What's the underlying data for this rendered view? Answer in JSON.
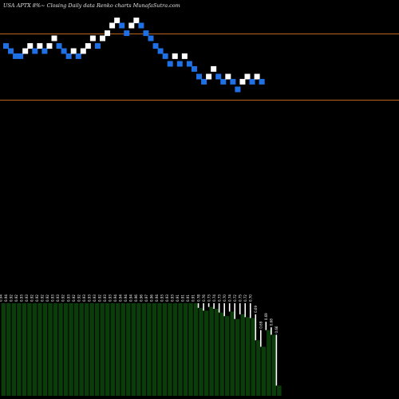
{
  "title": "USA APTX  8%~  Closing Daily data  Renko  charts MunafaSutra.com",
  "chart_data": {
    "type": "renko",
    "ylim": [
      0,
      1
    ],
    "reference_lines": [
      0.87,
      0.61
    ],
    "line_color": "#b5651d",
    "up_color": "#ffffff",
    "down_color": "#1f6fe5",
    "volume_color": "#0b3d0b",
    "bricks": [
      {
        "dir": "down",
        "level": 0.82
      },
      {
        "dir": "down",
        "level": 0.8
      },
      {
        "dir": "down",
        "level": 0.78
      },
      {
        "dir": "down",
        "level": 0.78
      },
      {
        "dir": "up",
        "level": 0.8
      },
      {
        "dir": "up",
        "level": 0.82
      },
      {
        "dir": "down",
        "level": 0.8
      },
      {
        "dir": "up",
        "level": 0.82
      },
      {
        "dir": "down",
        "level": 0.8
      },
      {
        "dir": "up",
        "level": 0.82
      },
      {
        "dir": "up",
        "level": 0.85
      },
      {
        "dir": "down",
        "level": 0.82
      },
      {
        "dir": "down",
        "level": 0.8
      },
      {
        "dir": "down",
        "level": 0.78
      },
      {
        "dir": "up",
        "level": 0.8
      },
      {
        "dir": "down",
        "level": 0.78
      },
      {
        "dir": "up",
        "level": 0.8
      },
      {
        "dir": "up",
        "level": 0.82
      },
      {
        "dir": "up",
        "level": 0.85
      },
      {
        "dir": "down",
        "level": 0.82
      },
      {
        "dir": "up",
        "level": 0.85
      },
      {
        "dir": "up",
        "level": 0.87
      },
      {
        "dir": "up",
        "level": 0.9
      },
      {
        "dir": "up",
        "level": 0.92
      },
      {
        "dir": "down",
        "level": 0.9
      },
      {
        "dir": "down",
        "level": 0.87
      },
      {
        "dir": "up",
        "level": 0.9
      },
      {
        "dir": "up",
        "level": 0.92
      },
      {
        "dir": "down",
        "level": 0.9
      },
      {
        "dir": "down",
        "level": 0.87
      },
      {
        "dir": "down",
        "level": 0.85
      },
      {
        "dir": "down",
        "level": 0.82
      },
      {
        "dir": "down",
        "level": 0.8
      },
      {
        "dir": "down",
        "level": 0.78
      },
      {
        "dir": "down",
        "level": 0.75
      },
      {
        "dir": "up",
        "level": 0.78
      },
      {
        "dir": "down",
        "level": 0.75
      },
      {
        "dir": "up",
        "level": 0.78
      },
      {
        "dir": "down",
        "level": 0.75
      },
      {
        "dir": "down",
        "level": 0.73
      },
      {
        "dir": "down",
        "level": 0.7
      },
      {
        "dir": "down",
        "level": 0.68
      },
      {
        "dir": "up",
        "level": 0.7
      },
      {
        "dir": "up",
        "level": 0.73
      },
      {
        "dir": "down",
        "level": 0.7
      },
      {
        "dir": "down",
        "level": 0.68
      },
      {
        "dir": "up",
        "level": 0.7
      },
      {
        "dir": "down",
        "level": 0.68
      },
      {
        "dir": "down",
        "level": 0.65
      },
      {
        "dir": "up",
        "level": 0.68
      },
      {
        "dir": "up",
        "level": 0.7
      },
      {
        "dir": "down",
        "level": 0.68
      },
      {
        "dir": "up",
        "level": 0.7
      },
      {
        "dir": "down",
        "level": 0.68
      }
    ],
    "volume": [
      {
        "label": "0.94",
        "bottom": 0.0,
        "top": 0.0
      },
      {
        "label": "0.94",
        "bottom": 0.0,
        "top": 0.0
      },
      {
        "label": "0.92",
        "bottom": 0.0,
        "top": 0.0
      },
      {
        "label": "0.92",
        "bottom": 0.0,
        "top": 0.0
      },
      {
        "label": "0.93",
        "bottom": 0.0,
        "top": 0.0
      },
      {
        "label": "0.93",
        "bottom": 0.0,
        "top": 0.0
      },
      {
        "label": "0.92",
        "bottom": 0.0,
        "top": 0.0
      },
      {
        "label": "0.92",
        "bottom": 0.0,
        "top": 0.0
      },
      {
        "label": "0.92",
        "bottom": 0.0,
        "top": 0.0
      },
      {
        "label": "0.92",
        "bottom": 0.0,
        "top": 0.0
      },
      {
        "label": "0.93",
        "bottom": 0.0,
        "top": 0.0
      },
      {
        "label": "0.93",
        "bottom": 0.0,
        "top": 0.0
      },
      {
        "label": "0.92",
        "bottom": 0.0,
        "top": 0.0
      },
      {
        "label": "0.93",
        "bottom": 0.0,
        "top": 0.0
      },
      {
        "label": "0.92",
        "bottom": 0.0,
        "top": 0.0
      },
      {
        "label": "0.92",
        "bottom": 0.0,
        "top": 0.0
      },
      {
        "label": "0.93",
        "bottom": 0.0,
        "top": 0.0
      },
      {
        "label": "0.93",
        "bottom": 0.0,
        "top": 0.0
      },
      {
        "label": "0.93",
        "bottom": 0.0,
        "top": 0.0
      },
      {
        "label": "0.92",
        "bottom": 0.0,
        "top": 0.0
      },
      {
        "label": "0.93",
        "bottom": 0.0,
        "top": 0.0
      },
      {
        "label": "0.93",
        "bottom": 0.0,
        "top": 0.0
      },
      {
        "label": "0.94",
        "bottom": 0.0,
        "top": 0.0
      },
      {
        "label": "0.94",
        "bottom": 0.0,
        "top": 0.0
      },
      {
        "label": "0.94",
        "bottom": 0.0,
        "top": 0.0
      },
      {
        "label": "0.94",
        "bottom": 0.0,
        "top": 0.0
      },
      {
        "label": "0.96",
        "bottom": 0.0,
        "top": 0.0
      },
      {
        "label": "0.96",
        "bottom": 0.0,
        "top": 0.0
      },
      {
        "label": "0.97",
        "bottom": 0.0,
        "top": 0.0
      },
      {
        "label": "0.96",
        "bottom": 0.0,
        "top": 0.0
      },
      {
        "label": "0.94",
        "bottom": 0.0,
        "top": 0.0
      },
      {
        "label": "0.93",
        "bottom": 0.0,
        "top": 0.0
      },
      {
        "label": "0.93",
        "bottom": 0.0,
        "top": 0.0
      },
      {
        "label": "0.93",
        "bottom": 0.0,
        "top": 0.0
      },
      {
        "label": "0.91",
        "bottom": 0.0,
        "top": 0.0
      },
      {
        "label": "0.91",
        "bottom": 0.0,
        "top": 0.0
      },
      {
        "label": "0.91",
        "bottom": 0.0,
        "top": 0.0
      },
      {
        "label": "0.91",
        "bottom": 0.0,
        "top": 0.0
      },
      {
        "label": "0.78",
        "bottom": 0.05,
        "top": 0.0
      },
      {
        "label": "0.76",
        "bottom": 0.08,
        "top": 0.0
      },
      {
        "label": "0.73",
        "bottom": 0.04,
        "top": 0.0
      },
      {
        "label": "0.74",
        "bottom": 0.06,
        "top": 0.0
      },
      {
        "label": "0.73",
        "bottom": 0.1,
        "top": 0.0
      },
      {
        "label": "0.70",
        "bottom": 0.14,
        "top": 0.0
      },
      {
        "label": "0.74",
        "bottom": 0.09,
        "top": 0.0
      },
      {
        "label": "0.72",
        "bottom": 0.17,
        "top": 0.0
      },
      {
        "label": "0.75",
        "bottom": 0.12,
        "top": 0.0
      },
      {
        "label": "0.72",
        "bottom": 0.15,
        "top": 0.0
      },
      {
        "label": "0.70",
        "bottom": 0.16,
        "top": 0.0
      },
      {
        "label": "0.69",
        "bottom": 0.4,
        "top": 0.12
      },
      {
        "label": "0.69",
        "bottom": 0.47,
        "top": 0.29
      },
      {
        "label": "0.69",
        "bottom": 0.29,
        "top": 0.2
      },
      {
        "label": "0.68",
        "bottom": 0.34,
        "top": 0.26
      },
      {
        "label": "0.66",
        "bottom": 0.89,
        "top": 0.34
      }
    ]
  }
}
